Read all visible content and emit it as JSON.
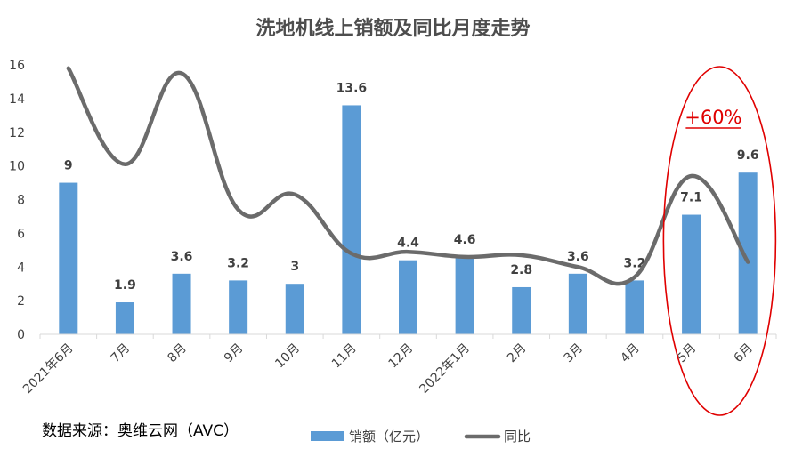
{
  "chart_data": {
    "type": "bar",
    "title": "洗地机线上销额及同比月度走势",
    "categories": [
      "2021年6月",
      "7月",
      "8月",
      "9月",
      "10月",
      "11月",
      "12月",
      "2022年1月",
      "2月",
      "3月",
      "4月",
      "5月",
      "6月"
    ],
    "series": [
      {
        "name": "销额（亿元）",
        "type": "bar",
        "color": "#5b9bd5",
        "values": [
          9,
          1.9,
          3.6,
          3.2,
          3,
          13.6,
          4.4,
          4.6,
          2.8,
          3.6,
          3.2,
          7.1,
          9.6
        ],
        "labels": [
          "9",
          "1.9",
          "3.6",
          "3.2",
          "3",
          "13.6",
          "4.4",
          "4.6",
          "2.8",
          "3.6",
          "3.2",
          "7.1",
          "9.6"
        ]
      },
      {
        "name": "同比",
        "type": "line",
        "smooth": true,
        "color": "#6b6b6b",
        "values": [
          15.8,
          10.1,
          15.5,
          7.4,
          8.3,
          4.8,
          4.9,
          4.6,
          4.7,
          4.0,
          3.4,
          9.4,
          4.3
        ]
      }
    ],
    "yticks": [
      "0",
      "2",
      "4",
      "6",
      "8",
      "10",
      "12",
      "14",
      "16"
    ],
    "ylim": [
      0,
      16
    ],
    "grid": false,
    "legend": "bottom",
    "annotation": {
      "text": "+60%",
      "color": "#e00000",
      "target_categories": [
        "5月",
        "6月"
      ]
    }
  },
  "source": "数据来源：奥维云网（AVC）"
}
